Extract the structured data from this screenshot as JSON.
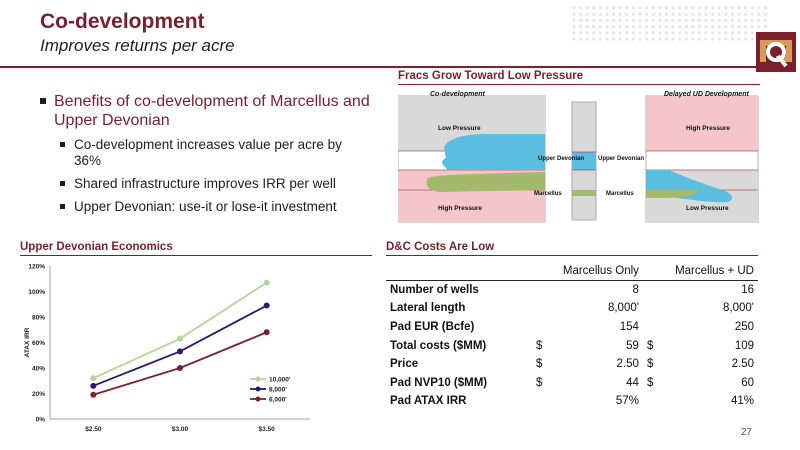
{
  "header": {
    "title": "Co-development",
    "subtitle": "Improves returns per acre"
  },
  "colors": {
    "brand": "#7a1f2b",
    "low_pressure": "#d9d9d9",
    "high_pressure": "#f4c6c9",
    "upper_devonian": "#5bbde0",
    "marcellus": "#a3b96b"
  },
  "bullets": {
    "main": "Benefits of co-development of Marcellus and Upper Devonian",
    "subs": [
      "Co-development increases value per acre by 36%",
      "Shared infrastructure improves IRR per well",
      "Upper Devonian: use-it or lose-it investment"
    ]
  },
  "fracs": {
    "section_title": "Fracs Grow Toward Low Pressure",
    "left_label": "Co-development",
    "right_label": "Delayed UD Development",
    "low_pressure": "Low Pressure",
    "high_pressure": "High Pressure",
    "upper_devonian": "Upper Devonian",
    "marcellus": "Marcellus"
  },
  "economics": {
    "section_title": "Upper Devonian Economics"
  },
  "chart_data": {
    "type": "line",
    "categories": [
      "$2.50",
      "$3.00",
      "$3.50"
    ],
    "series": [
      {
        "name": "10,000'",
        "values": [
          32,
          63,
          107
        ],
        "color": "#b3d69b"
      },
      {
        "name": "8,000'",
        "values": [
          26,
          53,
          89
        ],
        "color": "#2c1a6b"
      },
      {
        "name": "6,000'",
        "values": [
          19,
          40,
          68
        ],
        "color": "#7a1f2b"
      }
    ],
    "ylabel": "ATAX IRR",
    "yticks": [
      "0%",
      "20%",
      "40%",
      "60%",
      "80%",
      "100%",
      "120%"
    ],
    "ylim": [
      0,
      120
    ],
    "legend_position": "bottom-right"
  },
  "costs": {
    "section_title": "D&C Costs Are Low",
    "columns": [
      "",
      "Marcellus Only",
      "Marcellus + UD"
    ],
    "rows": [
      {
        "label": "Number of wells",
        "c1": {
          "cur": "",
          "val": "8"
        },
        "c2": {
          "cur": "",
          "val": "16"
        }
      },
      {
        "label": "Lateral length",
        "c1": {
          "cur": "",
          "val": "8,000'"
        },
        "c2": {
          "cur": "",
          "val": "8,000'"
        }
      },
      {
        "label": "Pad EUR (Bcfe)",
        "c1": {
          "cur": "",
          "val": "154"
        },
        "c2": {
          "cur": "",
          "val": "250"
        }
      },
      {
        "label": "Total costs ($MM)",
        "c1": {
          "cur": "$",
          "val": "59"
        },
        "c2": {
          "cur": "$",
          "val": "109"
        }
      },
      {
        "label": "Price",
        "c1": {
          "cur": "$",
          "val": "2.50"
        },
        "c2": {
          "cur": "$",
          "val": "2.50"
        }
      },
      {
        "label": "Pad NVP10 ($MM)",
        "c1": {
          "cur": "$",
          "val": "44"
        },
        "c2": {
          "cur": "$",
          "val": "60"
        }
      },
      {
        "label": "Pad ATAX IRR",
        "c1": {
          "cur": "",
          "val": "57%"
        },
        "c2": {
          "cur": "",
          "val": "41%"
        }
      }
    ]
  },
  "page_number": "27"
}
